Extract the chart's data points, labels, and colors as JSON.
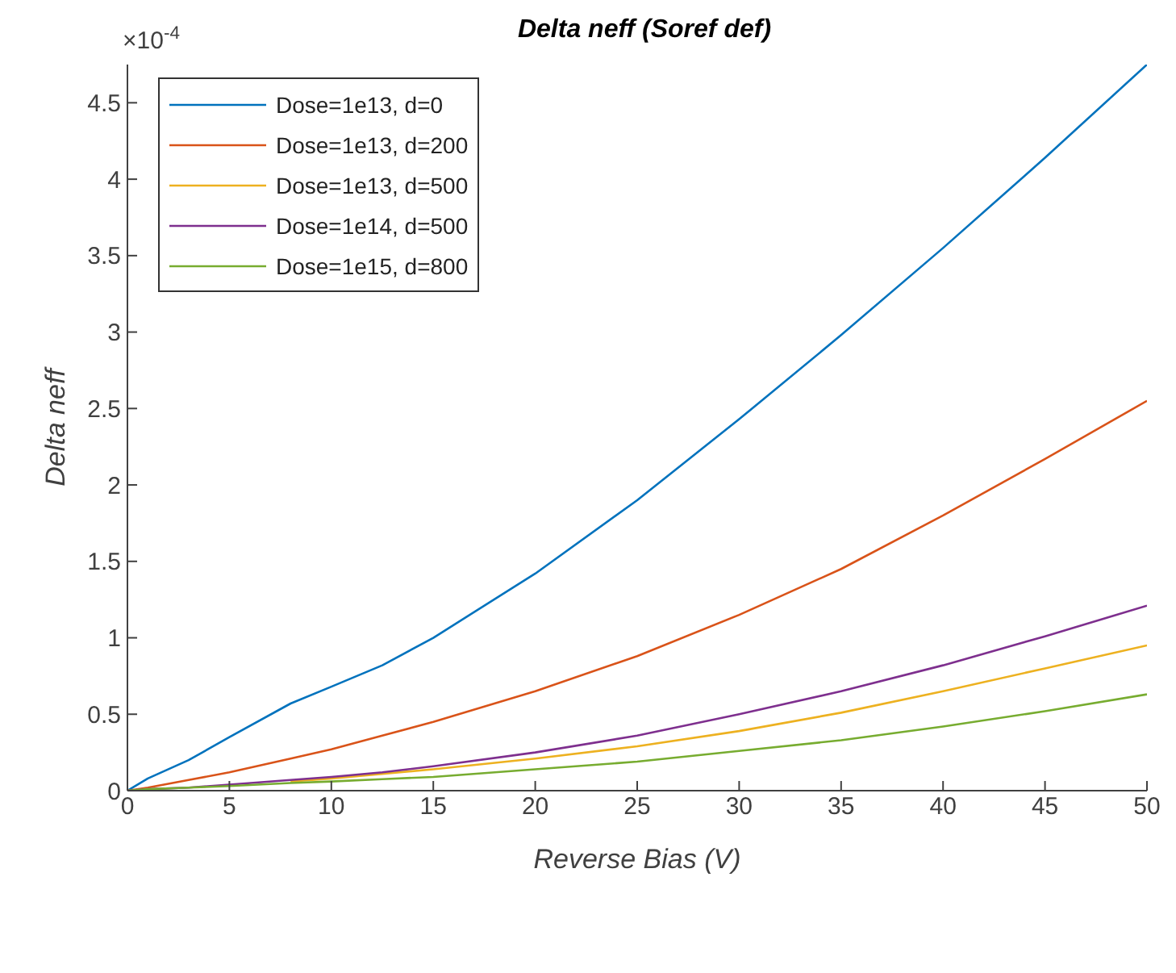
{
  "chart_data": {
    "type": "line",
    "title": "Delta neff (Soref def)",
    "xlabel": "Reverse Bias (V)",
    "ylabel": "Delta neff",
    "annotations": [
      "×10$^{-4}$"
    ],
    "x": [
      0,
      1,
      3,
      5,
      8,
      10,
      12.5,
      15,
      20,
      25,
      30,
      35,
      40,
      45,
      50
    ],
    "series": [
      {
        "name": "Dose=1e13, d=0",
        "color": "#0072bd",
        "values": [
          0,
          0.08,
          0.2,
          0.35,
          0.57,
          0.68,
          0.82,
          1.0,
          1.42,
          1.9,
          2.43,
          2.98,
          3.55,
          4.14,
          4.75
        ]
      },
      {
        "name": "Dose=1e13, d=200",
        "color": "#d95319",
        "values": [
          0,
          0.02,
          0.07,
          0.12,
          0.21,
          0.27,
          0.36,
          0.45,
          0.65,
          0.88,
          1.15,
          1.45,
          1.8,
          2.17,
          2.55
        ]
      },
      {
        "name": "Dose=1e13, d=500",
        "color": "#edb120",
        "values": [
          null,
          null,
          null,
          null,
          0.06,
          0.08,
          0.11,
          0.14,
          0.21,
          0.29,
          0.39,
          0.51,
          0.65,
          0.8,
          0.95
        ]
      },
      {
        "name": "Dose=1e14, d=500",
        "color": "#7e2f8e",
        "values": [
          0,
          0.01,
          0.02,
          0.04,
          0.07,
          0.09,
          0.12,
          0.16,
          0.25,
          0.36,
          0.5,
          0.65,
          0.82,
          1.01,
          1.21
        ]
      },
      {
        "name": "Dose=1e15, d=800",
        "color": "#77ac30",
        "values": [
          0,
          0.01,
          0.02,
          0.03,
          0.05,
          0.06,
          0.075,
          0.09,
          0.14,
          0.19,
          0.26,
          0.33,
          0.42,
          0.52,
          0.63
        ]
      }
    ],
    "xlim": [
      0,
      50
    ],
    "xticks": [
      0,
      5,
      10,
      15,
      20,
      25,
      30,
      35,
      40,
      45,
      50
    ],
    "ylim": [
      0,
      4.75
    ],
    "yticks": [
      0,
      0.5,
      1,
      1.5,
      2,
      2.5,
      3,
      3.5,
      4,
      4.5
    ],
    "grid": false,
    "legend": "top left",
    "marker": "none",
    "line_style": "solid"
  }
}
